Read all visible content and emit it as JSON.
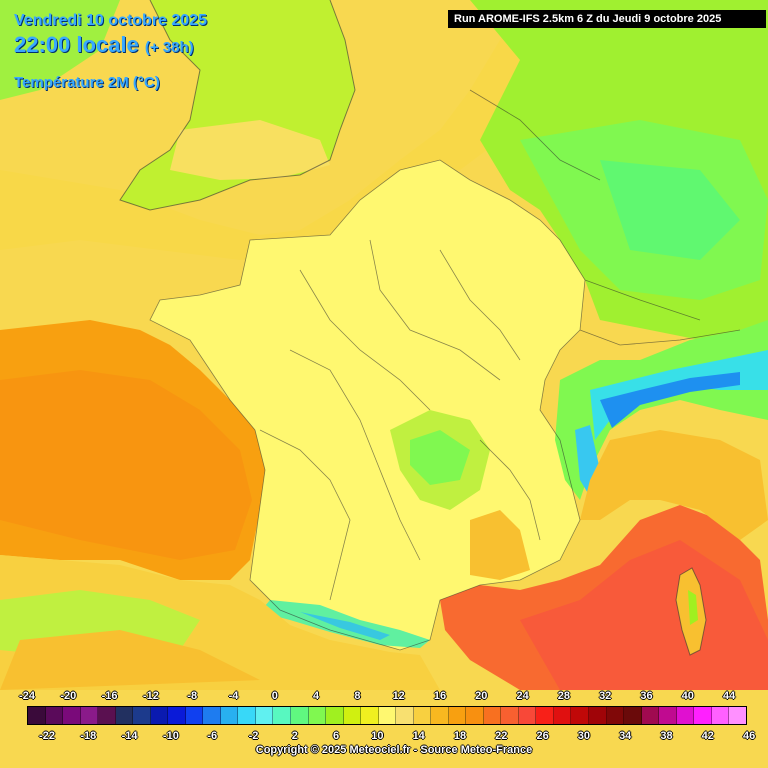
{
  "header": {
    "date_line": "Vendredi 10 octobre 2025",
    "time_line": "22:00 locale",
    "lead_time": "(+ 38h)",
    "variable": "Température 2M (°C)",
    "run_info": "Run AROME-IFS 2.5km 6 Z du Jeudi 9 octobre 2025"
  },
  "legend": {
    "top_labels": [
      "-24",
      "-20",
      "-16",
      "-12",
      "-8",
      "-4",
      "0",
      "4",
      "8",
      "12",
      "16",
      "20",
      "24",
      "28",
      "32",
      "36",
      "40",
      "44"
    ],
    "bottom_labels": [
      "-22",
      "-18",
      "-14",
      "-10",
      "-6",
      "-2",
      "2",
      "6",
      "10",
      "14",
      "18",
      "22",
      "26",
      "30",
      "34",
      "38",
      "42",
      "46"
    ],
    "colors": [
      "#3a0a3a",
      "#5a0a5a",
      "#7a0a7a",
      "#8a1a8a",
      "#5a1050",
      "#223060",
      "#1c3a8c",
      "#0a1ab0",
      "#0a1ad8",
      "#1040f0",
      "#1e7cf0",
      "#28b0f0",
      "#38d8f8",
      "#60f0f0",
      "#58f8c0",
      "#60f880",
      "#80f850",
      "#a0f020",
      "#d0f010",
      "#f0f020",
      "#fff870",
      "#f8e070",
      "#f8d040",
      "#f8b820",
      "#f8a010",
      "#f89010",
      "#f87020",
      "#f86030",
      "#f84838",
      "#f82018",
      "#e01010",
      "#c00808",
      "#a00408",
      "#800808",
      "#6a0a0a",
      "#a00a50",
      "#c00a90",
      "#e010d0",
      "#ff20ff",
      "#ff60ff",
      "#ff90ff"
    ]
  },
  "copyright": "Copyright © 2025 Meteociel.fr - Source Meteo-France",
  "colors": {
    "sea_cool": "#f8a010",
    "sea_warm": "#f85a3a",
    "land_mild": "#fff870",
    "land_cool": "#80f850",
    "mountain": "#28d8e8",
    "title_blue": "#38a8ff"
  }
}
